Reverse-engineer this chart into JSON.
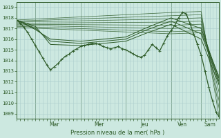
{
  "title": "",
  "xlabel": "Pression niveau de la mer( hPa )",
  "bg_color": "#cce8e0",
  "grid_color": "#aacccc",
  "line_color": "#2d5a27",
  "ylim_min": 1008.5,
  "ylim_max": 1019.5,
  "ytick_min": 1009,
  "ytick_max": 1019,
  "xlim_max": 215,
  "day_labels": [
    "Mar",
    "Mer",
    "Jeu",
    "Ven",
    "Sam"
  ],
  "day_x": [
    40,
    88,
    136,
    176,
    205
  ],
  "day_sep_x": [
    20,
    68,
    116,
    164,
    196
  ],
  "fan_lines": [
    {
      "x": [
        0,
        164,
        196,
        215
      ],
      "y": [
        1017.8,
        1018.5,
        1018.6,
        1008.7
      ]
    },
    {
      "x": [
        0,
        164,
        196,
        215
      ],
      "y": [
        1017.7,
        1018.2,
        1018.3,
        1009.5
      ]
    },
    {
      "x": [
        0,
        164,
        196,
        215
      ],
      "y": [
        1017.6,
        1017.9,
        1018.0,
        1010.2
      ]
    },
    {
      "x": [
        0,
        164,
        196,
        215
      ],
      "y": [
        1017.5,
        1017.6,
        1017.7,
        1011.0
      ]
    },
    {
      "x": [
        0,
        164,
        196,
        215
      ],
      "y": [
        1017.4,
        1017.3,
        1017.4,
        1011.7
      ]
    },
    {
      "x": [
        0,
        164,
        196,
        215
      ],
      "y": [
        1017.3,
        1017.0,
        1017.1,
        1012.0
      ]
    },
    {
      "x": [
        0,
        164,
        196,
        215
      ],
      "y": [
        1017.2,
        1016.7,
        1016.8,
        1012.3
      ]
    },
    {
      "x": [
        0,
        164,
        196,
        215
      ],
      "y": [
        1017.1,
        1016.5,
        1016.6,
        1012.5
      ]
    }
  ],
  "main_line_x": [
    0,
    4,
    8,
    12,
    16,
    20,
    24,
    28,
    32,
    36,
    40,
    44,
    48,
    52,
    56,
    60,
    64,
    68,
    72,
    76,
    80,
    84,
    88,
    92,
    96,
    100,
    104,
    108,
    112,
    116,
    120,
    124,
    128,
    132,
    136,
    140,
    144,
    148,
    152,
    156,
    160,
    164,
    168,
    172,
    176,
    180,
    184,
    188,
    192,
    196,
    200,
    204,
    208,
    212,
    215
  ],
  "main_line_y": [
    1017.8,
    1017.5,
    1017.1,
    1016.6,
    1016.0,
    1015.4,
    1014.8,
    1014.2,
    1013.6,
    1013.1,
    1013.4,
    1013.7,
    1014.1,
    1014.4,
    1014.6,
    1014.9,
    1015.1,
    1015.3,
    1015.4,
    1015.5,
    1015.6,
    1015.6,
    1015.5,
    1015.3,
    1015.2,
    1015.1,
    1015.2,
    1015.3,
    1015.1,
    1015.0,
    1014.8,
    1014.6,
    1014.4,
    1014.3,
    1014.5,
    1015.0,
    1015.5,
    1015.2,
    1014.9,
    1015.6,
    1016.3,
    1016.8,
    1017.3,
    1018.0,
    1018.5,
    1018.4,
    1017.5,
    1016.5,
    1015.5,
    1014.5,
    1013.0,
    1011.5,
    1010.2,
    1009.1,
    1008.7
  ],
  "second_line_x": [
    0,
    20,
    36,
    68,
    116,
    136,
    164,
    196,
    215
  ],
  "second_line_y": [
    1017.8,
    1017.2,
    1015.5,
    1015.4,
    1015.8,
    1016.5,
    1017.4,
    1016.0,
    1011.7
  ],
  "third_line_x": [
    0,
    20,
    36,
    68,
    116,
    136,
    164,
    196,
    215
  ],
  "third_line_y": [
    1017.8,
    1017.0,
    1015.8,
    1015.6,
    1016.0,
    1016.8,
    1017.7,
    1016.5,
    1012.0
  ],
  "fourth_line_x": [
    0,
    20,
    36,
    68,
    116,
    136,
    164,
    196,
    215
  ],
  "fourth_line_y": [
    1017.8,
    1016.9,
    1016.0,
    1015.8,
    1016.2,
    1017.0,
    1018.0,
    1017.0,
    1012.3
  ]
}
